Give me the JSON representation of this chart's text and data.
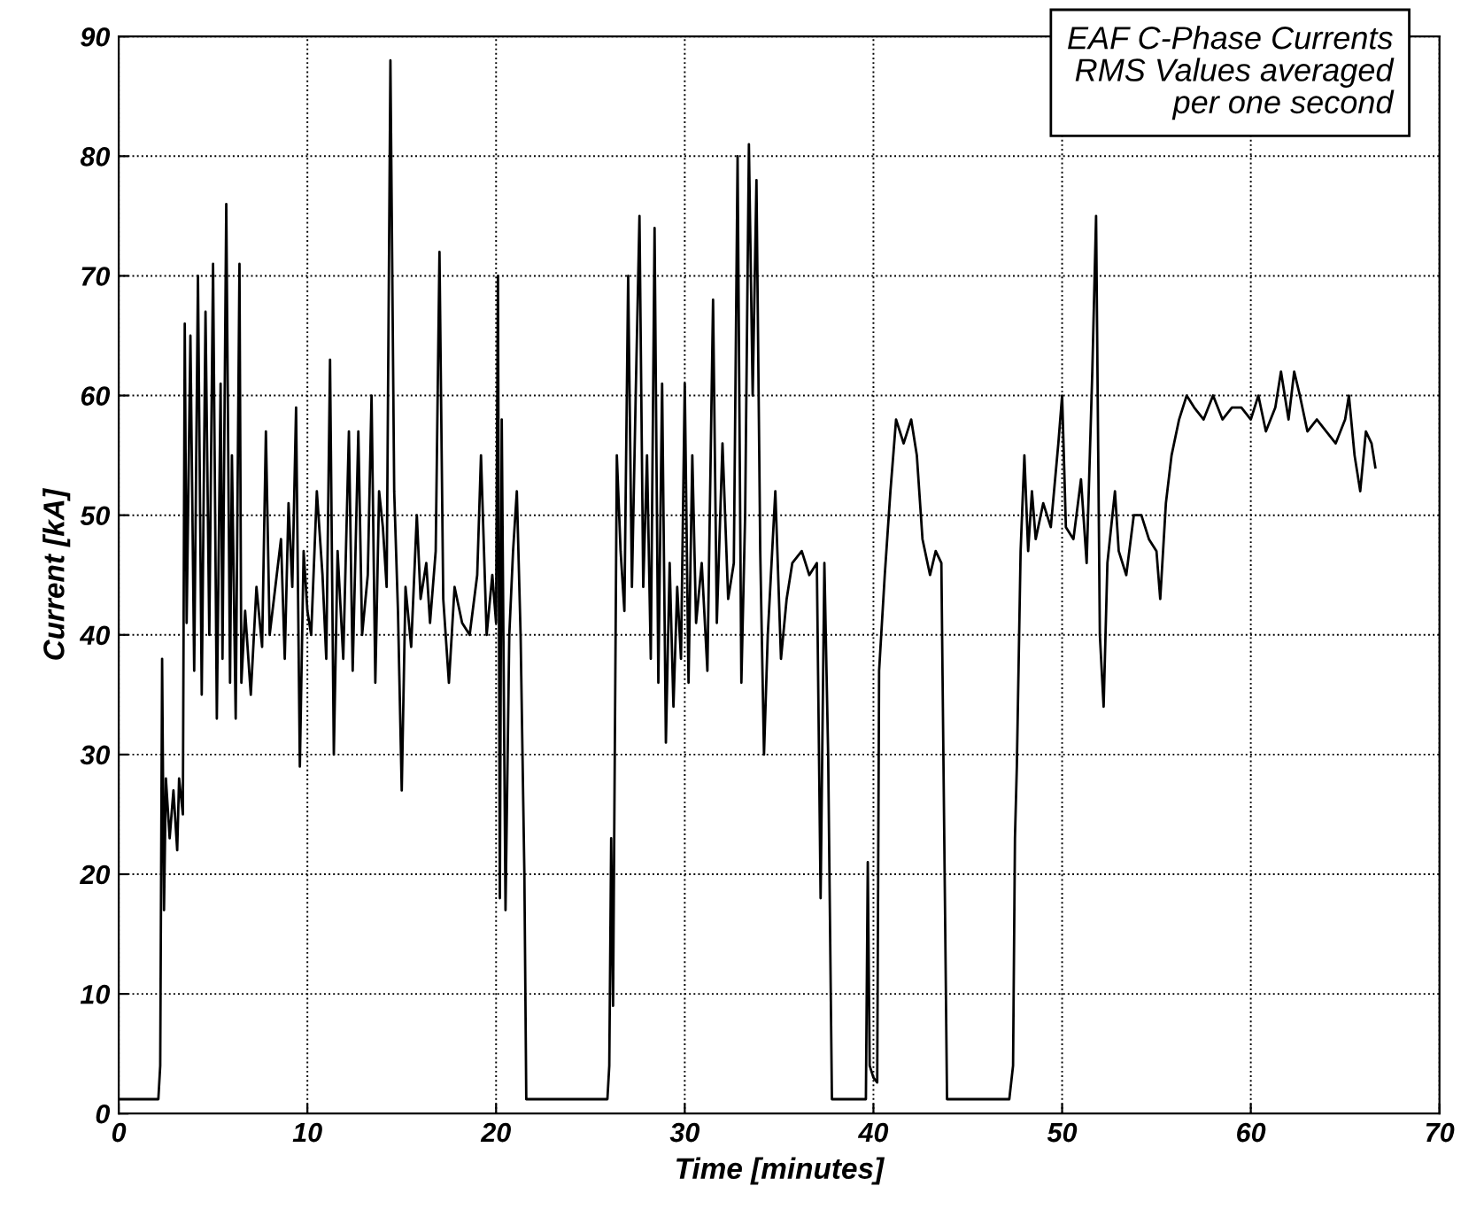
{
  "chart_data": {
    "type": "line",
    "xlabel": "Time [minutes]",
    "ylabel": "Current [kA]",
    "annotations": [
      "EAF C-Phase Currents\nRMS Values averaged\nper one second"
    ],
    "xlim": [
      0,
      70
    ],
    "xticks": [
      0,
      10,
      20,
      30,
      40,
      50,
      60,
      70
    ],
    "ylim": [
      0,
      90
    ],
    "yticks": [
      0,
      10,
      20,
      30,
      40,
      50,
      60,
      70,
      80,
      90
    ],
    "grid": true,
    "marker": "none",
    "line_style": "solid",
    "legend": false,
    "series": [
      {
        "color": "#000000",
        "x": [
          0,
          2.1,
          2.2,
          2.3,
          2.4,
          2.5,
          2.7,
          2.9,
          3.1,
          3.2,
          3.4,
          3.5,
          3.6,
          3.8,
          4.0,
          4.2,
          4.4,
          4.6,
          4.8,
          5.0,
          5.2,
          5.4,
          5.5,
          5.7,
          5.9,
          6.0,
          6.2,
          6.4,
          6.5,
          6.7,
          7.0,
          7.3,
          7.6,
          7.8,
          8.0,
          8.3,
          8.6,
          8.8,
          9.0,
          9.2,
          9.4,
          9.6,
          9.8,
          10.0,
          10.2,
          10.5,
          10.8,
          11.0,
          11.2,
          11.4,
          11.6,
          11.9,
          12.2,
          12.4,
          12.7,
          12.9,
          13.2,
          13.4,
          13.6,
          13.8,
          14.0,
          14.2,
          14.4,
          14.6,
          14.8,
          15.0,
          15.2,
          15.5,
          15.8,
          16.0,
          16.3,
          16.5,
          16.8,
          17.0,
          17.2,
          17.5,
          17.8,
          18.2,
          18.6,
          19.0,
          19.2,
          19.5,
          19.8,
          20.0,
          20.1,
          20.2,
          20.3,
          20.5,
          20.7,
          20.9,
          21.1,
          21.3,
          21.5,
          21.6,
          25.9,
          26.0,
          26.1,
          26.2,
          26.4,
          26.6,
          26.8,
          27.0,
          27.2,
          27.4,
          27.6,
          27.8,
          28.0,
          28.2,
          28.4,
          28.6,
          28.8,
          29.0,
          29.2,
          29.4,
          29.6,
          29.8,
          30.0,
          30.2,
          30.4,
          30.6,
          30.9,
          31.2,
          31.5,
          31.7,
          32.0,
          32.3,
          32.6,
          32.8,
          33.0,
          33.2,
          33.4,
          33.6,
          33.8,
          34.0,
          34.2,
          34.4,
          34.8,
          35.1,
          35.4,
          35.7,
          36.2,
          36.6,
          37.0,
          37.2,
          37.4,
          37.6,
          37.8,
          39.6,
          39.7,
          39.8,
          40.0,
          40.2,
          40.3,
          40.6,
          40.9,
          41.2,
          41.6,
          42.0,
          42.3,
          42.6,
          43.0,
          43.3,
          43.6,
          43.9,
          47.2,
          47.4,
          47.5,
          47.6,
          47.8,
          48.0,
          48.2,
          48.4,
          48.6,
          49.0,
          49.4,
          49.8,
          50.0,
          50.2,
          50.6,
          51.0,
          51.3,
          51.6,
          51.8,
          52.0,
          52.2,
          52.4,
          52.8,
          53.0,
          53.4,
          53.8,
          54.2,
          54.6,
          55.0,
          55.2,
          55.5,
          55.8,
          56.2,
          56.6,
          57.0,
          57.5,
          58.0,
          58.5,
          59.0,
          59.5,
          60.0,
          60.4,
          60.8,
          61.3,
          61.6,
          62.0,
          62.3,
          62.6,
          63.0,
          63.5,
          64.0,
          64.5,
          65.0,
          65.2,
          65.5,
          65.8,
          66.1,
          66.4,
          66.6
        ],
        "values": [
          1.2,
          1.2,
          4,
          38,
          17,
          28,
          23,
          27,
          22,
          28,
          25,
          66,
          41,
          65,
          37,
          70,
          35,
          67,
          40,
          71,
          33,
          61,
          38,
          76,
          36,
          55,
          33,
          71,
          36,
          42,
          35,
          44,
          39,
          57,
          40,
          44,
          48,
          38,
          51,
          44,
          59,
          29,
          47,
          42,
          40,
          52,
          45,
          38,
          63,
          30,
          47,
          38,
          57,
          37,
          57,
          40,
          45,
          60,
          36,
          52,
          49,
          44,
          88,
          52,
          42,
          27,
          44,
          39,
          50,
          43,
          46,
          41,
          47,
          72,
          43,
          36,
          44,
          41,
          40,
          45,
          55,
          40,
          45,
          41,
          70,
          18,
          58,
          17,
          40,
          47,
          52,
          40,
          20,
          1.2,
          1.2,
          4,
          23,
          9,
          55,
          47,
          42,
          70,
          44,
          60,
          75,
          44,
          55,
          38,
          74,
          36,
          61,
          31,
          46,
          34,
          44,
          38,
          61,
          36,
          55,
          41,
          46,
          37,
          68,
          41,
          56,
          43,
          46,
          80,
          36,
          50,
          81,
          60,
          78,
          47,
          30,
          40,
          52,
          38,
          43,
          46,
          47,
          45,
          46,
          18,
          46,
          30,
          1.2,
          1.2,
          21,
          4,
          3,
          2.6,
          37,
          45,
          52,
          58,
          56,
          58,
          55,
          48,
          45,
          47,
          46,
          1.2,
          1.2,
          4,
          23,
          29,
          47,
          55,
          47,
          52,
          48,
          51,
          49,
          56,
          60,
          49,
          48,
          53,
          46,
          62,
          75,
          40,
          34,
          46,
          52,
          47,
          45,
          50,
          50,
          48,
          47,
          43,
          51,
          55,
          58,
          60,
          59,
          58,
          60,
          58,
          59,
          59,
          58,
          60,
          57,
          59,
          62,
          58,
          62,
          60,
          57,
          58,
          57,
          56,
          58,
          60,
          55,
          52,
          57,
          56,
          54
        ]
      }
    ]
  }
}
